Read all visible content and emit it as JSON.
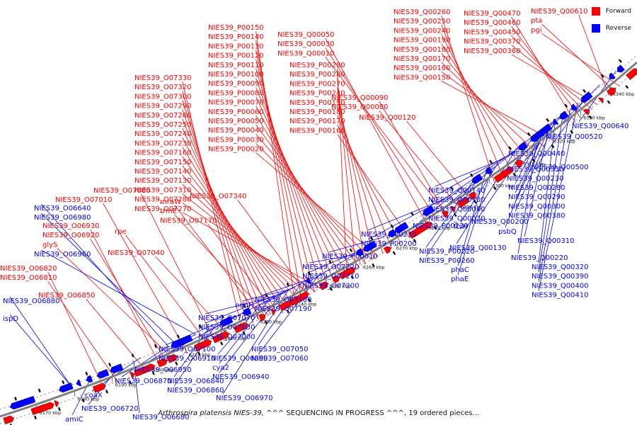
{
  "legend": {
    "forward": {
      "label": "Forward",
      "color": "#ff0000"
    },
    "reverse": {
      "label": "Reverse",
      "color": "#0000ff"
    }
  },
  "caption": {
    "organism": "Arthrospira platensis NIES-39,",
    "status": " ^^^ SEQUENCING IN PROGRESS ^^^, 19 ordered pieces..."
  },
  "map": {
    "axis_color": "#808080",
    "scale_ticks": [
      "6170 kbp",
      "6180 kbp",
      "6190 kbp",
      "6200 kbp",
      "6210 kbp",
      "6220 kbp",
      "6230 kbp",
      "6240 kbp",
      "6250 kbp",
      "6260 kbp",
      "6270 kbp",
      "6280 kbp",
      "6290 kbp",
      "6300 kbp",
      "6310 kbp",
      "6320 kbp",
      "6330 kbp",
      "6340 kbp"
    ],
    "forward_labels": [
      "NIES39_Q00610",
      "pta",
      "pgi",
      "NIES39_Q00470",
      "NIES39_Q00460",
      "NIES39_Q00450",
      "NIES39_Q00370",
      "NIES39_Q00360",
      "NIES39_Q00260",
      "NIES39_Q00250",
      "NIES39_Q00240",
      "NIES39_Q00190",
      "NIES39_Q00180",
      "NIES39_Q00170",
      "NIES39_Q00160",
      "NIES39_Q00150",
      "NIES39_Q00050",
      "NIES39_Q00030",
      "NIES39_Q00010",
      "NIES39_Q00090",
      "NIES39_Q00080",
      "NIES39_Q00120",
      "NIES39_P00150",
      "NIES39_P00140",
      "NIES39_P00130",
      "NIES39_P00120",
      "NIES39_P00110",
      "NIES39_P00100",
      "NIES39_P00090",
      "NIES39_P00080",
      "NIES39_P00070",
      "NIES39_P00060",
      "NIES39_P00050",
      "NIES39_P00040",
      "NIES39_P00030",
      "NIES39_P00020",
      "NIES39_P00290",
      "NIES39_P00280",
      "NIES39_P00270",
      "NIES39_P00240",
      "NIES39_P00190",
      "NIES39_P00180",
      "NIES39_P00170",
      "NIES39_P00160",
      "NIES39_O07330",
      "NIES39_O07320",
      "NIES39_O07300",
      "NIES39_O07290",
      "NIES39_O07260",
      "NIES39_O07250",
      "NIES39_O07240",
      "NIES39_O07230",
      "NIES39_O07160",
      "NIES39_O07150",
      "NIES39_O07140",
      "NIES39_O07130",
      "NIES39_O07310",
      "NIES39_O07280",
      "NIES39_O07270",
      "NIES39_O07080",
      "NIES39_O07340",
      "NIES39_O07010",
      "mraW",
      "trmE",
      "NIES39_O07170",
      "rpe",
      "NIES39_O06930",
      "NIES39_O06920",
      "glyS",
      "NIES39_O07040",
      "NIES39_O06820",
      "NIES39_O06810",
      "NIES39_O06850"
    ],
    "reverse_labels": [
      "NIES39_Q00640",
      "NIES39_Q00520",
      "NIES39_Q00500",
      "NIES39_Q00440",
      "NIES39_Q00330",
      "NIES39_Q00230",
      "NIES39_Q00280",
      "NIES39_Q00290",
      "NIES39_Q00300",
      "NIES39_Q00380",
      "NIES39_Q00140",
      "NIES39_Q00100",
      "NIES39_Q00040",
      "NIES39_Q00020",
      "NIES39_Q00200",
      "psbQ",
      "NIES39_Q00310",
      "NIES39_Q00130",
      "NIES39_Q00220",
      "NIES39_Q00320",
      "NIES39_Q00390",
      "NIES39_Q00400",
      "NIES39_Q00410",
      "ftsH",
      "NIES39_P00230",
      "NIES39_P00210",
      "NIES39_P00200",
      "NIES39_P00220",
      "NIES39_P00260",
      "phaC",
      "phaE",
      "NIES39_P00010",
      "NIES39_O07220",
      "NIES39_O07210",
      "NIES39_O07200",
      "NIES39_O07180",
      "NIES39_O07190",
      "ndhH",
      "NIES39_O07070",
      "NIES39_O07030",
      "NIES39_O07000",
      "NIES39_O07050",
      "NIES39_O07060",
      "NIES39_O07100",
      "NIES39_O06910",
      "NIES39_O06890",
      "cya2",
      "NIES39_O06940",
      "NIES39_O06970",
      "NIES39_O06950",
      "NIES39_O06840",
      "NIES39_O06860",
      "NIES39_O06870",
      "coaX",
      "NIES39_O06720",
      "NIES39_O06680",
      "amiC",
      "NIES39_O06640",
      "NIES39_O06980",
      "NIES39_O06960",
      "NIES39_O06880",
      "ispD"
    ]
  }
}
